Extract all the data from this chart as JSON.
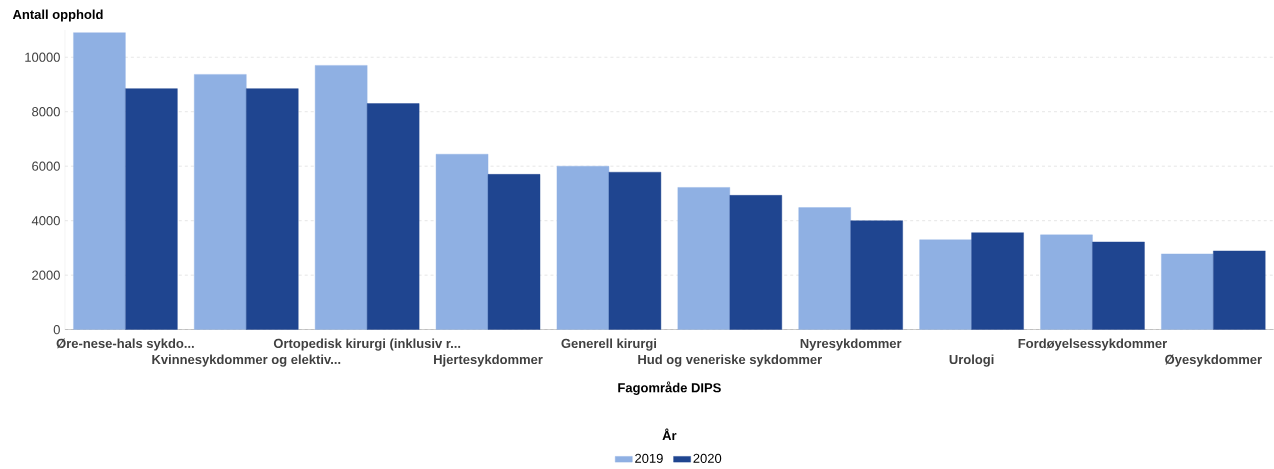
{
  "chart_data": {
    "type": "bar",
    "xlabel": "Fagområde DIPS",
    "ylabel": "Antall opphold",
    "legend_title": "År",
    "categories": [
      "Øre-nese-hals sykdo...",
      "Kvinnesykdommer og elektiv...",
      "Ortopedisk kirurgi (inklusiv r...",
      "Hjertesykdommer",
      "Generell kirurgi",
      "Hud og veneriske sykdommer",
      "Nyresykdommer",
      "Urologi",
      "Fordøyelsessykdommer",
      "Øyesykdommer"
    ],
    "series": [
      {
        "name": "2019",
        "color": "#8fb0e3",
        "values": [
          10900,
          9370,
          9700,
          6440,
          6000,
          5220,
          4480,
          3300,
          3480,
          2780
        ]
      },
      {
        "name": "2020",
        "color": "#1f4590",
        "values": [
          8850,
          8850,
          8300,
          5700,
          5780,
          4930,
          4000,
          3560,
          3220,
          2890
        ]
      }
    ],
    "ylim": [
      0,
      11000
    ],
    "yticks": [
      0,
      2000,
      4000,
      6000,
      8000,
      10000
    ],
    "grid": "y",
    "legend": "bottom"
  }
}
